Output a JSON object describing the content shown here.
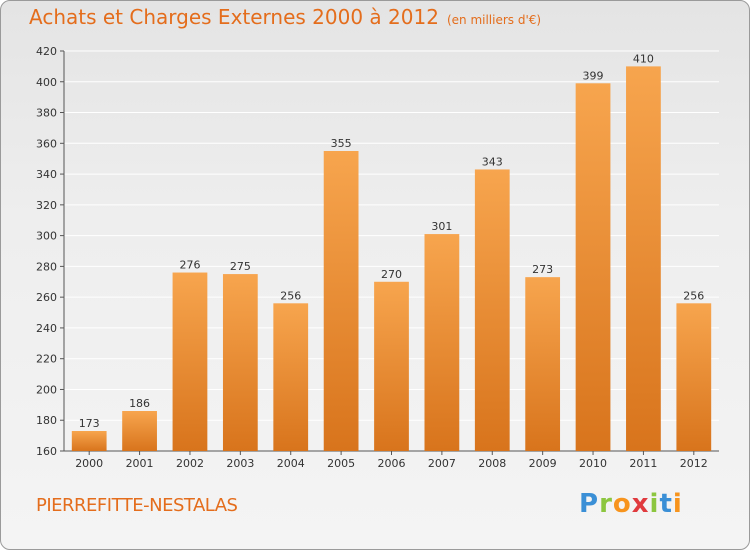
{
  "chart_data": {
    "type": "bar",
    "title": "Achats et Charges Externes 2000 à 2012",
    "unit": "(en milliers d'€)",
    "categories": [
      "2000",
      "2001",
      "2002",
      "2003",
      "2004",
      "2005",
      "2006",
      "2007",
      "2008",
      "2009",
      "2010",
      "2011",
      "2012"
    ],
    "values": [
      173,
      186,
      276,
      275,
      256,
      355,
      270,
      301,
      343,
      273,
      399,
      410,
      256
    ],
    "ylim": [
      160,
      420
    ],
    "yticks": [
      160,
      180,
      200,
      220,
      240,
      260,
      280,
      300,
      320,
      340,
      360,
      380,
      400,
      420
    ],
    "grid": true,
    "bar_color_light": "#f7a54e",
    "bar_color_dark": "#d8741c"
  },
  "footer": {
    "location": "PIERREFITTE-NESTALAS",
    "logo_letters": [
      {
        "ch": "P",
        "color": "#3a8fd6"
      },
      {
        "ch": "r",
        "color": "#8cc63f"
      },
      {
        "ch": "o",
        "color": "#f7941d"
      },
      {
        "ch": "x",
        "color": "#e03a3e"
      },
      {
        "ch": "i",
        "color": "#8cc63f"
      },
      {
        "ch": "t",
        "color": "#3a8fd6"
      },
      {
        "ch": "i",
        "color": "#f7941d"
      }
    ]
  }
}
